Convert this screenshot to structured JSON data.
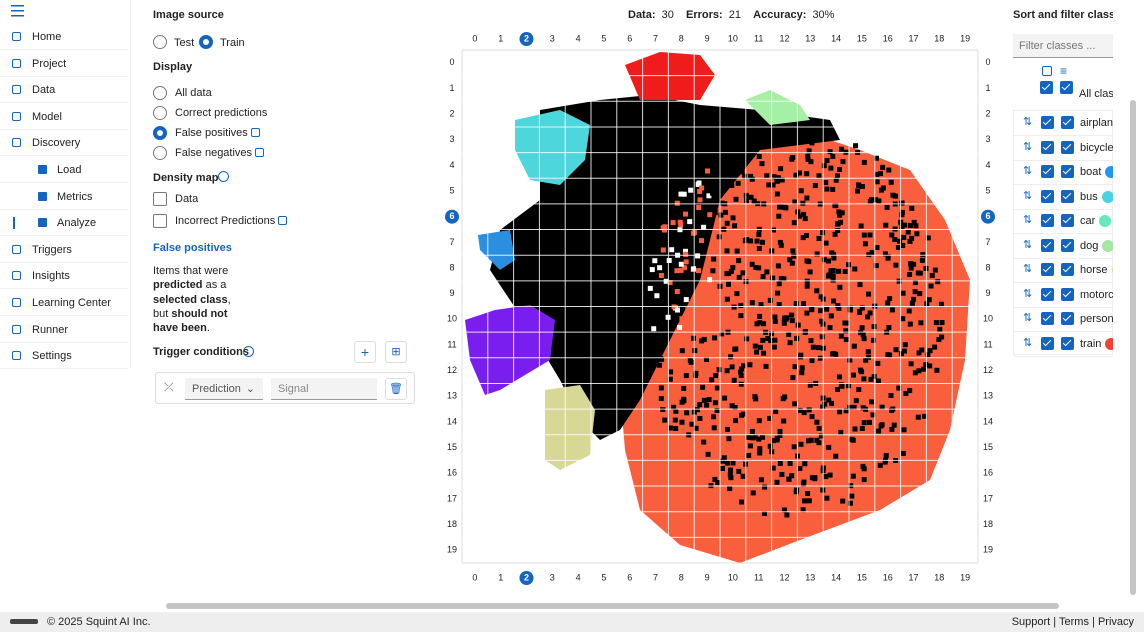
{
  "sidebar": {
    "items": [
      {
        "label": "Home",
        "sub": false
      },
      {
        "label": "Project",
        "sub": false
      },
      {
        "label": "Data",
        "sub": false
      },
      {
        "label": "Model",
        "sub": false
      },
      {
        "label": "Discovery",
        "sub": false
      },
      {
        "label": "Load",
        "sub": true
      },
      {
        "label": "Metrics",
        "sub": true
      },
      {
        "label": "Analyze",
        "sub": true,
        "active": true
      },
      {
        "label": "Triggers",
        "sub": false
      },
      {
        "label": "Insights",
        "sub": false
      },
      {
        "label": "Learning Center",
        "sub": false
      },
      {
        "label": "Runner",
        "sub": false
      },
      {
        "label": "Settings",
        "sub": false
      }
    ]
  },
  "panel": {
    "image_source": {
      "title": "Image source",
      "options": [
        "Test",
        "Train"
      ],
      "selected": 1
    },
    "display": {
      "title": "Display",
      "options": [
        "All data",
        "Correct predictions",
        "False positives",
        "False negatives"
      ],
      "selected": 2
    },
    "density_map": {
      "title": "Density map",
      "options": [
        "Data",
        "Incorrect Predictions"
      ]
    },
    "info": {
      "title": "False positives",
      "description": [
        {
          "text": "Items that were ",
          "bold": false
        },
        {
          "text": "predicted",
          "bold": true
        },
        {
          "text": " as a ",
          "bold": false
        },
        {
          "text": "selected class",
          "bold": true
        },
        {
          "text": ", but ",
          "bold": false
        },
        {
          "text": "should not have been",
          "bold": true
        },
        {
          "text": ".",
          "bold": false
        }
      ]
    },
    "trigger": {
      "title": "Trigger conditions",
      "select": "Prediction",
      "placeholder": "Signal"
    }
  },
  "stats": {
    "data_label": "Data:",
    "data": 30,
    "errors_label": "Errors:",
    "errors": 21,
    "accuracy_label": "Accuracy:",
    "accuracy": "30%"
  },
  "map": {
    "columns": [
      0,
      1,
      2,
      3,
      4,
      5,
      6,
      7,
      8,
      9,
      10,
      11,
      12,
      13,
      14,
      15,
      16,
      17,
      18,
      19
    ],
    "rows": [
      0,
      1,
      2,
      3,
      4,
      5,
      6,
      7,
      8,
      9,
      10,
      11,
      12,
      13,
      14,
      15,
      16,
      17,
      18,
      19
    ],
    "selected_column": 2,
    "selected_row": 6
  },
  "classes": {
    "title": "Sort and filter classes",
    "filter_placeholder": "Filter classes ...",
    "all": "All classes",
    "items": [
      {
        "name": "airplane"
      },
      {
        "name": "bicycle"
      },
      {
        "name": "boat",
        "color": "#2196f3"
      },
      {
        "name": "bus",
        "color": "#4dd0e1"
      },
      {
        "name": "car",
        "color": "#64e8c0"
      },
      {
        "name": "dog",
        "color": "#a5e6a5"
      },
      {
        "name": "horse",
        "color": "#dcdc96"
      },
      {
        "name": "motorcycle"
      },
      {
        "name": "person"
      },
      {
        "name": "train",
        "color": "#f44336"
      }
    ]
  },
  "footer": {
    "copyright": "© 2025 Squint AI Inc.",
    "links": [
      "Support",
      "Terms",
      "Privacy"
    ]
  }
}
